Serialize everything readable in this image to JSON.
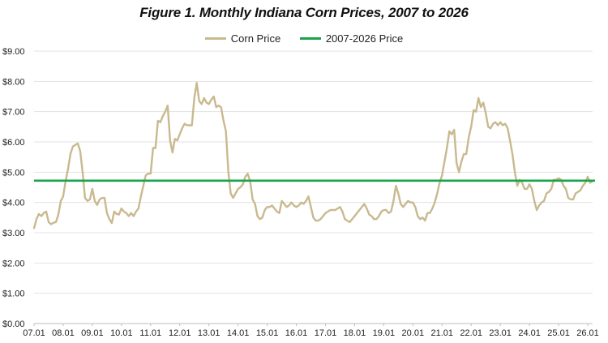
{
  "colors": {
    "corn": "#c9b98f",
    "avg": "#1aa34a",
    "grid": "#e3e3e3",
    "axis": "#bdbdbd"
  },
  "chart_data": {
    "type": "line",
    "title": "Figure 1.  Monthly Indiana Corn Prices, 2007 to 2026",
    "xlabel": "",
    "ylabel": "",
    "ylim": [
      0,
      9
    ],
    "grid": true,
    "legend_position": "top",
    "y_ticks": [
      "$0.00",
      "$1.00",
      "$2.00",
      "$3.00",
      "$4.00",
      "$5.00",
      "$6.00",
      "$7.00",
      "$8.00",
      "$9.00"
    ],
    "x_ticks": [
      "07.01",
      "08.01",
      "09.01",
      "10.01",
      "11.01",
      "12.01",
      "13.01",
      "14.01",
      "15.01",
      "16.01",
      "17.01",
      "18.01",
      "19.01",
      "20.01",
      "21.01",
      "22.01",
      "23.01",
      "24.01",
      "25.01",
      "26.01"
    ],
    "series": [
      {
        "name": "Corn Price",
        "color": "#c9b98f",
        "points": [
          [
            "07.01",
            3.15
          ],
          [
            "07.02",
            3.45
          ],
          [
            "07.03",
            3.62
          ],
          [
            "07.04",
            3.55
          ],
          [
            "07.05",
            3.65
          ],
          [
            "07.06",
            3.7
          ],
          [
            "07.07",
            3.35
          ],
          [
            "07.08",
            3.28
          ],
          [
            "07.09",
            3.33
          ],
          [
            "07.10",
            3.35
          ],
          [
            "07.11",
            3.6
          ],
          [
            "07.12",
            4.05
          ],
          [
            "08.01",
            4.2
          ],
          [
            "08.02",
            4.7
          ],
          [
            "08.03",
            5.1
          ],
          [
            "08.04",
            5.6
          ],
          [
            "08.05",
            5.85
          ],
          [
            "08.06",
            5.9
          ],
          [
            "08.07",
            5.95
          ],
          [
            "08.08",
            5.7
          ],
          [
            "08.09",
            5.0
          ],
          [
            "08.10",
            4.15
          ],
          [
            "08.11",
            4.05
          ],
          [
            "08.12",
            4.1
          ],
          [
            "09.01",
            4.45
          ],
          [
            "09.02",
            4.05
          ],
          [
            "09.03",
            3.92
          ],
          [
            "09.04",
            4.1
          ],
          [
            "09.05",
            4.15
          ],
          [
            "09.06",
            4.15
          ],
          [
            "09.07",
            3.65
          ],
          [
            "09.08",
            3.45
          ],
          [
            "09.09",
            3.32
          ],
          [
            "09.10",
            3.7
          ],
          [
            "09.11",
            3.62
          ],
          [
            "09.12",
            3.6
          ],
          [
            "10.01",
            3.8
          ],
          [
            "10.02",
            3.7
          ],
          [
            "10.03",
            3.65
          ],
          [
            "10.04",
            3.55
          ],
          [
            "10.05",
            3.65
          ],
          [
            "10.06",
            3.55
          ],
          [
            "10.07",
            3.7
          ],
          [
            "10.08",
            3.8
          ],
          [
            "10.09",
            4.2
          ],
          [
            "10.10",
            4.55
          ],
          [
            "10.11",
            4.9
          ],
          [
            "10.12",
            4.95
          ],
          [
            "11.01",
            4.95
          ],
          [
            "11.02",
            5.8
          ],
          [
            "11.03",
            5.8
          ],
          [
            "11.04",
            6.7
          ],
          [
            "11.05",
            6.65
          ],
          [
            "11.06",
            6.85
          ],
          [
            "11.07",
            7.0
          ],
          [
            "11.08",
            7.2
          ],
          [
            "11.09",
            6.05
          ],
          [
            "11.10",
            5.65
          ],
          [
            "11.11",
            6.1
          ],
          [
            "11.12",
            6.05
          ],
          [
            "12.01",
            6.25
          ],
          [
            "12.02",
            6.45
          ],
          [
            "12.03",
            6.6
          ],
          [
            "12.04",
            6.55
          ],
          [
            "12.05",
            6.55
          ],
          [
            "12.06",
            6.55
          ],
          [
            "12.07",
            7.45
          ],
          [
            "12.08",
            7.95
          ],
          [
            "12.09",
            7.35
          ],
          [
            "12.10",
            7.25
          ],
          [
            "12.11",
            7.45
          ],
          [
            "12.12",
            7.3
          ],
          [
            "13.01",
            7.25
          ],
          [
            "13.02",
            7.4
          ],
          [
            "13.03",
            7.5
          ],
          [
            "13.04",
            7.15
          ],
          [
            "13.05",
            7.2
          ],
          [
            "13.06",
            7.15
          ],
          [
            "13.07",
            6.7
          ],
          [
            "13.08",
            6.35
          ],
          [
            "13.09",
            5.0
          ],
          [
            "13.10",
            4.3
          ],
          [
            "13.11",
            4.15
          ],
          [
            "13.12",
            4.3
          ],
          [
            "14.01",
            4.45
          ],
          [
            "14.02",
            4.5
          ],
          [
            "14.03",
            4.6
          ],
          [
            "14.04",
            4.85
          ],
          [
            "14.05",
            4.95
          ],
          [
            "14.06",
            4.7
          ],
          [
            "14.07",
            4.1
          ],
          [
            "14.08",
            3.95
          ],
          [
            "14.09",
            3.55
          ],
          [
            "14.10",
            3.45
          ],
          [
            "14.11",
            3.5
          ],
          [
            "14.12",
            3.75
          ],
          [
            "15.01",
            3.85
          ],
          [
            "15.02",
            3.85
          ],
          [
            "15.03",
            3.9
          ],
          [
            "15.04",
            3.8
          ],
          [
            "15.05",
            3.7
          ],
          [
            "15.06",
            3.65
          ],
          [
            "15.07",
            4.05
          ],
          [
            "15.08",
            3.95
          ],
          [
            "15.09",
            3.85
          ],
          [
            "15.10",
            3.9
          ],
          [
            "15.11",
            4.0
          ],
          [
            "15.12",
            3.9
          ],
          [
            "16.01",
            3.85
          ],
          [
            "16.02",
            3.9
          ],
          [
            "16.03",
            4.0
          ],
          [
            "16.04",
            3.95
          ],
          [
            "16.05",
            4.05
          ],
          [
            "16.06",
            4.2
          ],
          [
            "16.07",
            3.85
          ],
          [
            "16.08",
            3.5
          ],
          [
            "16.09",
            3.4
          ],
          [
            "16.10",
            3.4
          ],
          [
            "16.11",
            3.45
          ],
          [
            "16.12",
            3.55
          ],
          [
            "17.01",
            3.65
          ],
          [
            "17.02",
            3.7
          ],
          [
            "17.03",
            3.75
          ],
          [
            "17.04",
            3.75
          ],
          [
            "17.05",
            3.75
          ],
          [
            "17.06",
            3.8
          ],
          [
            "17.07",
            3.85
          ],
          [
            "17.08",
            3.7
          ],
          [
            "17.09",
            3.45
          ],
          [
            "17.10",
            3.4
          ],
          [
            "17.11",
            3.35
          ],
          [
            "17.12",
            3.45
          ],
          [
            "18.01",
            3.55
          ],
          [
            "18.02",
            3.65
          ],
          [
            "18.03",
            3.75
          ],
          [
            "18.04",
            3.85
          ],
          [
            "18.05",
            3.95
          ],
          [
            "18.06",
            3.8
          ],
          [
            "18.07",
            3.6
          ],
          [
            "18.08",
            3.55
          ],
          [
            "18.09",
            3.45
          ],
          [
            "18.10",
            3.45
          ],
          [
            "18.11",
            3.55
          ],
          [
            "18.12",
            3.7
          ],
          [
            "19.01",
            3.75
          ],
          [
            "19.02",
            3.75
          ],
          [
            "19.03",
            3.65
          ],
          [
            "19.04",
            3.7
          ],
          [
            "19.05",
            4.05
          ],
          [
            "19.06",
            4.55
          ],
          [
            "19.07",
            4.3
          ],
          [
            "19.08",
            3.95
          ],
          [
            "19.09",
            3.85
          ],
          [
            "19.10",
            3.95
          ],
          [
            "19.11",
            4.05
          ],
          [
            "19.12",
            4.0
          ],
          [
            "20.01",
            4.0
          ],
          [
            "20.02",
            3.85
          ],
          [
            "20.03",
            3.55
          ],
          [
            "20.04",
            3.45
          ],
          [
            "20.05",
            3.5
          ],
          [
            "20.06",
            3.4
          ],
          [
            "20.07",
            3.65
          ],
          [
            "20.08",
            3.65
          ],
          [
            "20.09",
            3.8
          ],
          [
            "20.10",
            4.0
          ],
          [
            "20.11",
            4.3
          ],
          [
            "20.12",
            4.65
          ],
          [
            "21.01",
            4.9
          ],
          [
            "21.02",
            5.35
          ],
          [
            "21.03",
            5.8
          ],
          [
            "21.04",
            6.35
          ],
          [
            "21.05",
            6.25
          ],
          [
            "21.06",
            6.4
          ],
          [
            "21.07",
            5.3
          ],
          [
            "21.08",
            5.0
          ],
          [
            "21.09",
            5.35
          ],
          [
            "21.10",
            5.6
          ],
          [
            "21.11",
            5.6
          ],
          [
            "21.12",
            6.15
          ],
          [
            "22.01",
            6.5
          ],
          [
            "22.02",
            7.05
          ],
          [
            "22.03",
            7.0
          ],
          [
            "22.04",
            7.45
          ],
          [
            "22.05",
            7.15
          ],
          [
            "22.06",
            7.3
          ],
          [
            "22.07",
            6.95
          ],
          [
            "22.08",
            6.5
          ],
          [
            "22.09",
            6.45
          ],
          [
            "22.10",
            6.6
          ],
          [
            "22.11",
            6.65
          ],
          [
            "22.12",
            6.55
          ],
          [
            "23.01",
            6.65
          ],
          [
            "23.02",
            6.55
          ],
          [
            "23.03",
            6.6
          ],
          [
            "23.04",
            6.45
          ],
          [
            "23.05",
            6.05
          ],
          [
            "23.06",
            5.6
          ],
          [
            "23.07",
            5.0
          ],
          [
            "23.08",
            4.55
          ],
          [
            "23.09",
            4.75
          ],
          [
            "23.10",
            4.65
          ],
          [
            "23.11",
            4.45
          ],
          [
            "23.12",
            4.45
          ],
          [
            "24.01",
            4.6
          ],
          [
            "24.02",
            4.45
          ],
          [
            "24.03",
            4.05
          ],
          [
            "24.04",
            3.75
          ],
          [
            "24.05",
            3.9
          ],
          [
            "24.06",
            4.0
          ],
          [
            "24.07",
            4.05
          ],
          [
            "24.08",
            4.3
          ],
          [
            "24.09",
            4.35
          ],
          [
            "24.10",
            4.45
          ],
          [
            "24.11",
            4.75
          ],
          [
            "24.12",
            4.75
          ],
          [
            "25.01",
            4.8
          ],
          [
            "25.02",
            4.75
          ],
          [
            "25.03",
            4.55
          ],
          [
            "25.04",
            4.45
          ],
          [
            "25.05",
            4.15
          ],
          [
            "25.06",
            4.1
          ],
          [
            "25.07",
            4.1
          ],
          [
            "25.08",
            4.3
          ],
          [
            "25.09",
            4.35
          ],
          [
            "25.10",
            4.4
          ],
          [
            "25.11",
            4.55
          ],
          [
            "25.12",
            4.65
          ],
          [
            "26.01",
            4.85
          ],
          [
            "26.02",
            4.65
          ],
          [
            "26.03",
            4.7
          ]
        ]
      },
      {
        "name": "2007-2026 Price",
        "color": "#1aa34a",
        "value": 4.72
      }
    ]
  }
}
